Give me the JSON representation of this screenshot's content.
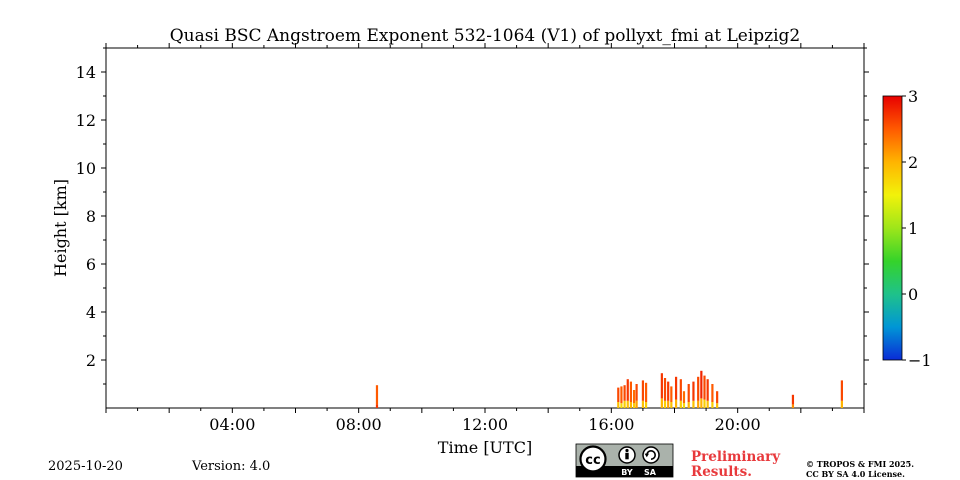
{
  "chart_data": {
    "type": "heatmap",
    "title": "Quasi BSC Angstroem Exponent 532-1064 (V1) of pollyxt_fmi at Leipzig2",
    "xlabel": "Time [UTC]",
    "ylabel": "Height [km]",
    "xlim_hours": [
      0,
      24
    ],
    "ylim_km": [
      0,
      15
    ],
    "x_ticks": [
      {
        "value": 4,
        "label": "04:00"
      },
      {
        "value": 8,
        "label": "08:00"
      },
      {
        "value": 12,
        "label": "12:00"
      },
      {
        "value": 16,
        "label": "16:00"
      },
      {
        "value": 20,
        "label": "20:00"
      }
    ],
    "y_ticks": [
      {
        "value": 2,
        "label": "2"
      },
      {
        "value": 4,
        "label": "4"
      },
      {
        "value": 6,
        "label": "6"
      },
      {
        "value": 8,
        "label": "8"
      },
      {
        "value": 10,
        "label": "10"
      },
      {
        "value": 12,
        "label": "12"
      },
      {
        "value": 14,
        "label": "14"
      }
    ],
    "colorbar": {
      "min": -1,
      "max": 3,
      "ticks": [
        {
          "value": 3,
          "label": "3"
        },
        {
          "value": 2,
          "label": "2"
        },
        {
          "value": 1,
          "label": "1"
        },
        {
          "value": 0,
          "label": "0"
        },
        {
          "value": -1,
          "label": "−1"
        }
      ],
      "colors": [
        "#0a2bd6",
        "#0096d6",
        "#1fc28a",
        "#35d32a",
        "#9ee61a",
        "#f2f20a",
        "#ffb400",
        "#ff5a00",
        "#e80000"
      ]
    },
    "profiles": [
      {
        "t": 8.58,
        "top": 0.95,
        "segments": [
          [
            0,
            0.15,
            2.7
          ],
          [
            0.15,
            0.95,
            2.5
          ]
        ]
      },
      {
        "t": 16.22,
        "top": 0.85,
        "segments": [
          [
            0,
            0.25,
            1.9
          ],
          [
            0.25,
            0.85,
            2.6
          ]
        ]
      },
      {
        "t": 16.32,
        "top": 0.9,
        "segments": [
          [
            0,
            0.2,
            1.7
          ],
          [
            0.2,
            0.9,
            2.5
          ]
        ]
      },
      {
        "t": 16.42,
        "top": 0.95,
        "segments": [
          [
            0,
            0.3,
            1.8
          ],
          [
            0.3,
            0.95,
            2.6
          ]
        ]
      },
      {
        "t": 16.52,
        "top": 1.2,
        "segments": [
          [
            0,
            0.3,
            1.9
          ],
          [
            0.3,
            1.2,
            2.7
          ]
        ]
      },
      {
        "t": 16.62,
        "top": 1.1,
        "segments": [
          [
            0,
            0.25,
            2.0
          ],
          [
            0.25,
            1.1,
            2.5
          ]
        ]
      },
      {
        "t": 16.72,
        "top": 0.75,
        "segments": [
          [
            0,
            0.2,
            1.8
          ],
          [
            0.2,
            0.75,
            2.4
          ]
        ]
      },
      {
        "t": 16.8,
        "top": 1.0,
        "segments": [
          [
            0,
            0.3,
            2.1
          ],
          [
            0.3,
            1.0,
            2.6
          ]
        ]
      },
      {
        "t": 17.0,
        "top": 1.15,
        "segments": [
          [
            0,
            0.3,
            1.9
          ],
          [
            0.3,
            1.15,
            2.6
          ]
        ]
      },
      {
        "t": 17.1,
        "top": 1.05,
        "segments": [
          [
            0,
            0.25,
            1.8
          ],
          [
            0.25,
            1.05,
            2.5
          ]
        ]
      },
      {
        "t": 17.6,
        "top": 1.45,
        "segments": [
          [
            0,
            0.4,
            2.0
          ],
          [
            0.4,
            1.45,
            2.7
          ]
        ]
      },
      {
        "t": 17.7,
        "top": 1.25,
        "segments": [
          [
            0,
            0.3,
            1.8
          ],
          [
            0.3,
            1.25,
            2.6
          ]
        ]
      },
      {
        "t": 17.8,
        "top": 1.1,
        "segments": [
          [
            0,
            0.3,
            2.1
          ],
          [
            0.3,
            1.1,
            2.7
          ]
        ]
      },
      {
        "t": 17.9,
        "top": 0.9,
        "segments": [
          [
            0,
            0.25,
            1.9
          ],
          [
            0.25,
            0.9,
            2.5
          ]
        ]
      },
      {
        "t": 18.05,
        "top": 1.3,
        "segments": [
          [
            0,
            0.35,
            2.0
          ],
          [
            0.35,
            1.3,
            2.7
          ]
        ]
      },
      {
        "t": 18.2,
        "top": 1.2,
        "segments": [
          [
            0,
            0.3,
            1.8
          ],
          [
            0.3,
            1.2,
            2.6
          ]
        ]
      },
      {
        "t": 18.3,
        "top": 0.7,
        "segments": [
          [
            0,
            0.2,
            1.7
          ],
          [
            0.2,
            0.7,
            2.4
          ]
        ]
      },
      {
        "t": 18.45,
        "top": 1.0,
        "segments": [
          [
            0,
            0.25,
            2.0
          ],
          [
            0.25,
            1.0,
            2.6
          ]
        ]
      },
      {
        "t": 18.6,
        "top": 1.1,
        "segments": [
          [
            0,
            0.3,
            1.9
          ],
          [
            0.3,
            1.1,
            2.7
          ]
        ]
      },
      {
        "t": 18.75,
        "top": 1.3,
        "segments": [
          [
            0,
            0.3,
            2.1
          ],
          [
            0.3,
            1.3,
            2.6
          ]
        ]
      },
      {
        "t": 18.85,
        "top": 1.55,
        "segments": [
          [
            0,
            0.4,
            2.0
          ],
          [
            0.4,
            1.55,
            2.8
          ]
        ]
      },
      {
        "t": 18.95,
        "top": 1.35,
        "segments": [
          [
            0,
            0.35,
            1.8
          ],
          [
            0.35,
            1.35,
            2.6
          ]
        ]
      },
      {
        "t": 19.05,
        "top": 1.2,
        "segments": [
          [
            0,
            0.3,
            1.9
          ],
          [
            0.3,
            1.2,
            2.7
          ]
        ]
      },
      {
        "t": 19.2,
        "top": 1.0,
        "segments": [
          [
            0,
            0.25,
            1.8
          ],
          [
            0.25,
            1.0,
            2.5
          ]
        ]
      },
      {
        "t": 19.35,
        "top": 0.7,
        "segments": [
          [
            0,
            0.2,
            1.9
          ],
          [
            0.2,
            0.7,
            2.6
          ]
        ]
      },
      {
        "t": 21.75,
        "top": 0.55,
        "segments": [
          [
            0,
            0.15,
            2.2
          ],
          [
            0.15,
            0.55,
            2.7
          ]
        ]
      },
      {
        "t": 23.3,
        "top": 1.15,
        "segments": [
          [
            0,
            0.3,
            2.0
          ],
          [
            0.3,
            1.15,
            2.6
          ]
        ]
      }
    ]
  },
  "footer": {
    "date": "2025-10-20",
    "version": "Version: 4.0",
    "preliminary_line1": "Preliminary",
    "preliminary_line2": "Results.",
    "copyright_line1": "© TROPOS & FMI 2025.",
    "copyright_line2": "CC BY SA 4.0 License.",
    "license_badge": {
      "cc": "cc",
      "by": "BY",
      "sa": "SA",
      "icons": [
        "cc-icon",
        "attribution-icon",
        "share-alike-icon"
      ]
    }
  }
}
